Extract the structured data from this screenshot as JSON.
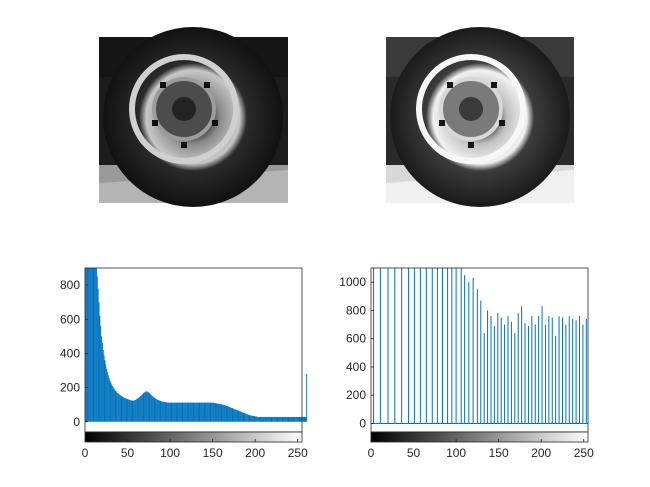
{
  "figure": {
    "background": "#ffffff",
    "axis_color": "#262626",
    "bar_color": "#0072bd",
    "line_color": "#0072bd"
  },
  "images": [
    {
      "subject": "car wheel and tyre, grayscale (original)",
      "contrast": "low"
    },
    {
      "subject": "car wheel and tyre, grayscale (histogram equalized)",
      "contrast": "high"
    }
  ],
  "chart_data": [
    {
      "type": "bar",
      "title": "",
      "xlabel": "",
      "ylabel": "",
      "xlim": [
        0,
        255
      ],
      "ylim": [
        -60,
        900
      ],
      "xticks": [
        0,
        50,
        100,
        150,
        200,
        250
      ],
      "yticks": [
        0,
        200,
        400,
        600,
        800
      ],
      "xtick_labels": [
        "0",
        "50",
        "100",
        "150",
        "200",
        "250"
      ],
      "ytick_labels": [
        "0",
        "200",
        "400",
        "600",
        "800"
      ],
      "colorbar": "grayscale gradient black to white under x-axis",
      "series": [
        {
          "bins": "0-255",
          "values": [
            900,
            900,
            900,
            900,
            900,
            900,
            900,
            900,
            900,
            900,
            900,
            900,
            900,
            900,
            850,
            780,
            700,
            620,
            560,
            500,
            460,
            420,
            390,
            360,
            335,
            310,
            290,
            272,
            256,
            242,
            230,
            219,
            209,
            200,
            192,
            185,
            179,
            173,
            168,
            164,
            160,
            156,
            152,
            149,
            146,
            143,
            140,
            138,
            136,
            134,
            132,
            130,
            128,
            126,
            125,
            124,
            123,
            124,
            126,
            128,
            131,
            134,
            138,
            142,
            146,
            150,
            155,
            160,
            165,
            170,
            173,
            176,
            178,
            177,
            174,
            170,
            165,
            160,
            155,
            150,
            146,
            142,
            138,
            135,
            132,
            129,
            127,
            125,
            123,
            121,
            119,
            118,
            117,
            116,
            115,
            114,
            113,
            112,
            112,
            112,
            112,
            112,
            112,
            112,
            112,
            112,
            112,
            112,
            112,
            112,
            112,
            112,
            112,
            112,
            112,
            112,
            112,
            112,
            112,
            112,
            112,
            112,
            112,
            112,
            112,
            112,
            112,
            112,
            112,
            112,
            112,
            112,
            112,
            112,
            112,
            112,
            112,
            112,
            112,
            112,
            112,
            112,
            112,
            112,
            112,
            112,
            112,
            112,
            112,
            112,
            112,
            111,
            110,
            109,
            108,
            107,
            106,
            105,
            104,
            103,
            102,
            101,
            100,
            99,
            98,
            96,
            94,
            92,
            90,
            88,
            86,
            84,
            82,
            80,
            78,
            76,
            74,
            72,
            70,
            68,
            66,
            64,
            62,
            60,
            58,
            56,
            54,
            52,
            50,
            48,
            46,
            44,
            42,
            40,
            38,
            37,
            36,
            35,
            34,
            33,
            32,
            31,
            30,
            29,
            28,
            28,
            28,
            28,
            28,
            28,
            28,
            28,
            28,
            28,
            28,
            28,
            28,
            28,
            28,
            28,
            28,
            28,
            28,
            28,
            28,
            28,
            28,
            28,
            28,
            28,
            28,
            28,
            28,
            28,
            28,
            28,
            28,
            28,
            28,
            28,
            28,
            28,
            28,
            28,
            28,
            28,
            28,
            28,
            28,
            28,
            28,
            28,
            28,
            28,
            28,
            28,
            28,
            28,
            28,
            28,
            28,
            280
          ]
        }
      ]
    },
    {
      "type": "bar",
      "title": "",
      "xlabel": "",
      "ylabel": "",
      "xlim": [
        0,
        255
      ],
      "ylim": [
        -60,
        1100
      ],
      "xticks": [
        0,
        50,
        100,
        150,
        200,
        250
      ],
      "yticks": [
        0,
        200,
        400,
        600,
        800,
        1000
      ],
      "xtick_labels": [
        "0",
        "50",
        "100",
        "150",
        "200",
        "250"
      ],
      "ytick_labels": [
        "0",
        "200",
        "400",
        "600",
        "800",
        "1000"
      ],
      "colorbar": "grayscale gradient black to white under x-axis",
      "series": [
        {
          "x": [
            3,
            11,
            20,
            28,
            36,
            44,
            51,
            58,
            65,
            72,
            78,
            84,
            90,
            95,
            100,
            106,
            110,
            115,
            120,
            125,
            129,
            133,
            137,
            141,
            145,
            149,
            153,
            157,
            161,
            165,
            169,
            173,
            177,
            181,
            185,
            189,
            193,
            197,
            201,
            205,
            209,
            213,
            217,
            221,
            225,
            229,
            233,
            237,
            241,
            245,
            249,
            253
          ],
          "values": [
            1100,
            1100,
            1100,
            1100,
            1100,
            1100,
            1100,
            1100,
            1100,
            1100,
            1100,
            1100,
            1100,
            1100,
            1100,
            1100,
            1050,
            1000,
            1030,
            950,
            870,
            640,
            800,
            760,
            690,
            780,
            750,
            700,
            760,
            720,
            640,
            780,
            830,
            710,
            690,
            760,
            700,
            760,
            830,
            700,
            760,
            750,
            620,
            760,
            750,
            700,
            760,
            740,
            730,
            760,
            700,
            740
          ]
        }
      ]
    }
  ]
}
